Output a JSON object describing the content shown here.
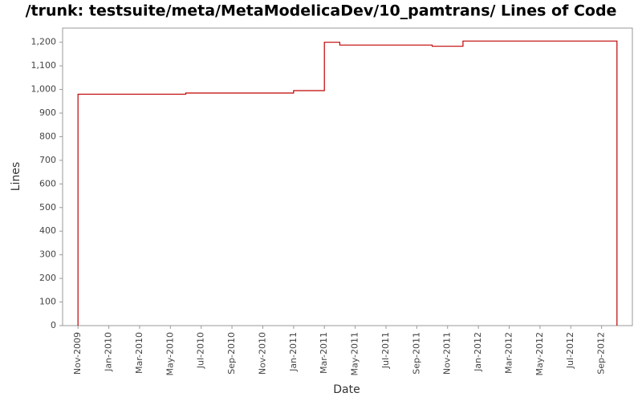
{
  "chart_data": {
    "type": "step",
    "title": "/trunk: testsuite/meta/MetaModelicaDev/10_pamtrans/ Lines of Code",
    "xlabel": "Date",
    "ylabel": "Lines",
    "x": [
      "2009-11",
      "2009-11",
      "2010-06",
      "2011-01",
      "2011-03",
      "2011-04",
      "2011-10",
      "2011-12",
      "2012-10"
    ],
    "values": [
      0,
      980,
      985,
      995,
      1200,
      1188,
      1183,
      1205,
      0
    ],
    "color": "#c00000",
    "xlim": [
      "2009-10",
      "2012-11"
    ],
    "xticks": [
      {
        "value": "2009-11",
        "label": "Nov-2009"
      },
      {
        "value": "2010-01",
        "label": "Jan-2010"
      },
      {
        "value": "2010-03",
        "label": "Mar-2010"
      },
      {
        "value": "2010-05",
        "label": "May-2010"
      },
      {
        "value": "2010-07",
        "label": "Jul-2010"
      },
      {
        "value": "2010-09",
        "label": "Sep-2010"
      },
      {
        "value": "2010-11",
        "label": "Nov-2010"
      },
      {
        "value": "2011-01",
        "label": "Jan-2011"
      },
      {
        "value": "2011-03",
        "label": "Mar-2011"
      },
      {
        "value": "2011-05",
        "label": "May-2011"
      },
      {
        "value": "2011-07",
        "label": "Jul-2011"
      },
      {
        "value": "2011-09",
        "label": "Sep-2011"
      },
      {
        "value": "2011-11",
        "label": "Nov-2011"
      },
      {
        "value": "2012-01",
        "label": "Jan-2012"
      },
      {
        "value": "2012-03",
        "label": "Mar-2012"
      },
      {
        "value": "2012-05",
        "label": "May-2012"
      },
      {
        "value": "2012-07",
        "label": "Jul-2012"
      },
      {
        "value": "2012-09",
        "label": "Sep-2012"
      }
    ],
    "ylim": [
      0,
      1260
    ],
    "yticks": [
      0,
      100,
      200,
      300,
      400,
      500,
      600,
      700,
      800,
      900,
      {
        "value": 1000,
        "label": "1,000"
      },
      {
        "value": 1100,
        "label": "1,100"
      },
      {
        "value": 1200,
        "label": "1,200"
      }
    ],
    "grid": false
  }
}
